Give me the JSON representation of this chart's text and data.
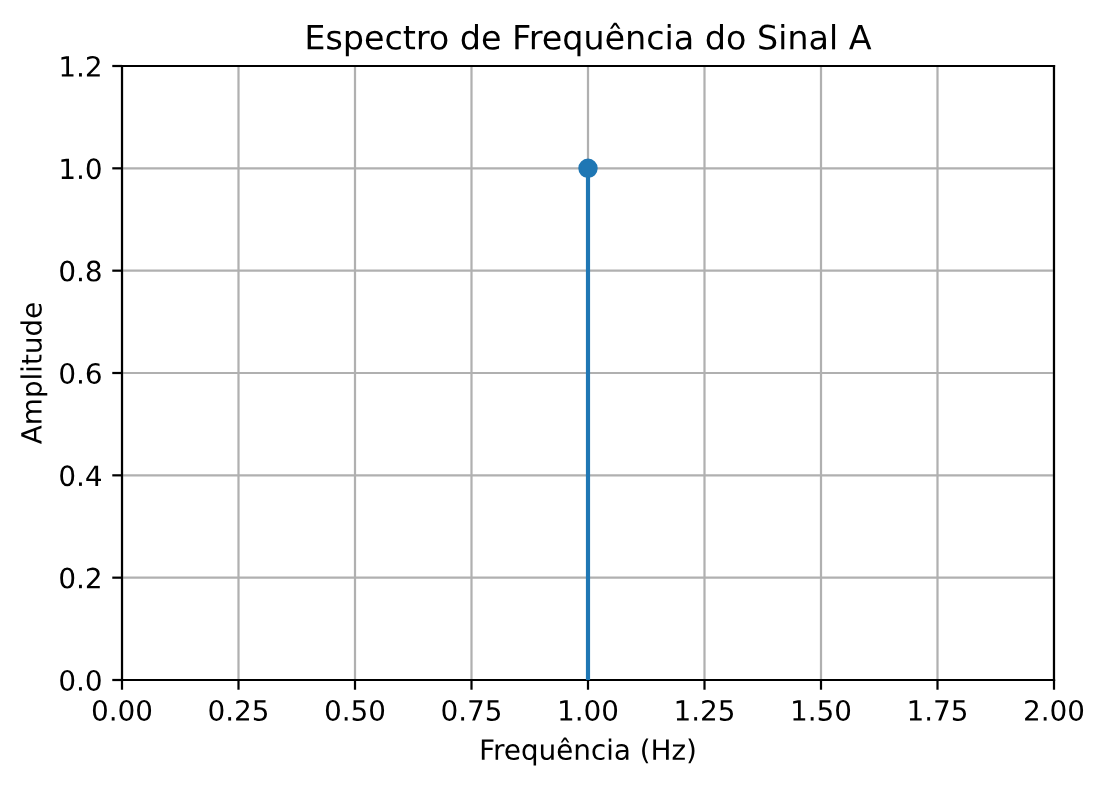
{
  "chart_data": {
    "type": "lollipop",
    "title": "Espectro de Frequência do Sinal A",
    "xlabel": "Frequência (Hz)",
    "ylabel": "Amplitude",
    "x": [
      1
    ],
    "series": [
      {
        "color": "#1f77b4",
        "values": [
          1.0
        ]
      }
    ],
    "xlim": [
      0,
      2
    ],
    "xticks": [
      {
        "value": 0,
        "label": "0.00"
      },
      {
        "value": 0.25,
        "label": "0.25"
      },
      {
        "value": 0.5,
        "label": "0.50"
      },
      {
        "value": 0.75,
        "label": "0.75"
      },
      {
        "value": 1,
        "label": "1.00"
      },
      {
        "value": 1.25,
        "label": "1.25"
      },
      {
        "value": 1.5,
        "label": "1.50"
      },
      {
        "value": 1.75,
        "label": "1.75"
      },
      {
        "value": 2,
        "label": "2.00"
      }
    ],
    "ylim": [
      0,
      1.2
    ],
    "yticks": [
      {
        "value": 0,
        "label": "0.0"
      },
      {
        "value": 0.2,
        "label": "0.2"
      },
      {
        "value": 0.4,
        "label": "0.4"
      },
      {
        "value": 0.6,
        "label": "0.6"
      },
      {
        "value": 0.8,
        "label": "0.8"
      },
      {
        "value": 1.0,
        "label": "1.0"
      },
      {
        "value": 1.2,
        "label": "1.2"
      }
    ],
    "grid": true,
    "marker": "circle"
  }
}
